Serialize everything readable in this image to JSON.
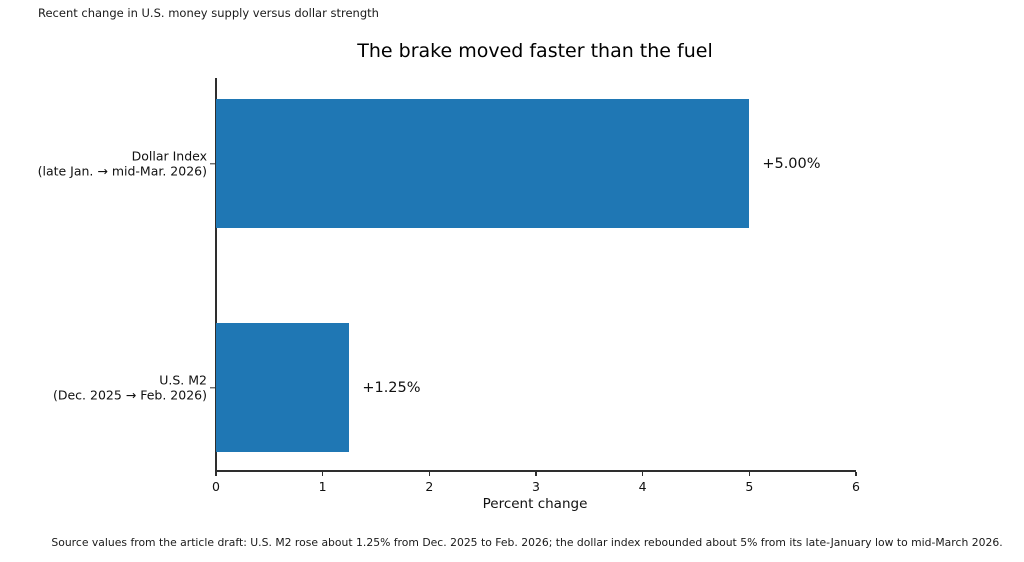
{
  "annotation": "Recent change in U.S. money supply versus dollar strength",
  "source_note": "Source values from the article draft: U.S. M2 rose about 1.25% from Dec. 2025 to Feb. 2026; the dollar index rebounded about 5% from its late-January low to mid-March 2026.",
  "chart_data": {
    "type": "bar",
    "orientation": "horizontal",
    "title": "The brake moved faster than the fuel",
    "xlabel": "Percent change",
    "ylabel": "",
    "xlim": [
      0,
      6
    ],
    "xticks": [
      "0",
      "1",
      "2",
      "3",
      "4",
      "5",
      "6"
    ],
    "grid": false,
    "legend": false,
    "bar_color": "#1f77b4",
    "categories": [
      "Dollar Index (late Jan. → mid-Mar. 2026)",
      "U.S. M2 (Dec. 2025 → Feb. 2026)"
    ],
    "values": [
      5.0,
      1.25
    ],
    "series": [
      {
        "category_line1": "Dollar Index",
        "category_line2": "(late Jan. → mid-Mar. 2026)",
        "value": 5.0,
        "label": "+5.00%"
      },
      {
        "category_line1": "U.S. M2",
        "category_line2": "(Dec. 2025 → Feb. 2026)",
        "value": 1.25,
        "label": "+1.25%"
      }
    ]
  }
}
